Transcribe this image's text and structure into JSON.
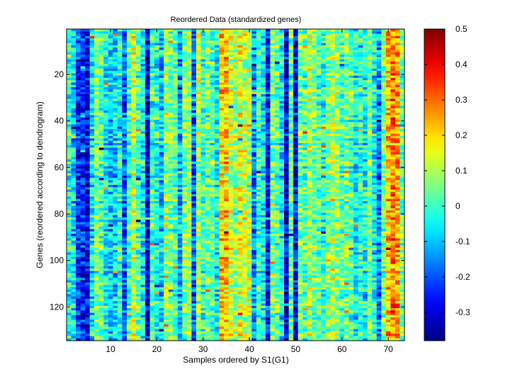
{
  "chart_data": {
    "type": "heatmap",
    "title": "Reordered Data (standardized genes)",
    "xlabel": "Samples ordered by S1(G1)",
    "ylabel": "Genes (reordered according to dendrogram)",
    "n_cols": 73,
    "n_rows": 134,
    "xlim": [
      0.5,
      73.5
    ],
    "ylim": [
      0.5,
      134.5
    ],
    "y_direction": "down",
    "xticks": [
      10,
      20,
      30,
      40,
      50,
      60,
      70
    ],
    "yticks": [
      20,
      40,
      60,
      80,
      100,
      120
    ],
    "colorbar": {
      "colormap": "jet",
      "range": [
        -0.38,
        0.5
      ],
      "ticks": [
        0.5,
        0.4,
        0.3,
        0.2,
        0.1,
        0,
        -0.1,
        -0.2,
        -0.3
      ],
      "tick_labels": [
        "0.5",
        "0.4",
        "0.3",
        "0.2",
        "0.1",
        "0",
        "-0.1",
        "-0.2",
        "-0.3"
      ]
    },
    "column_means": [
      -0.02,
      -0.08,
      -0.22,
      -0.25,
      -0.28,
      -0.05,
      0.05,
      0.02,
      -0.05,
      -0.1,
      -0.08,
      -0.02,
      -0.2,
      0.0,
      0.12,
      0.02,
      -0.05,
      -0.3,
      0.0,
      -0.02,
      -0.1,
      0.08,
      0.05,
      0.02,
      -0.12,
      0.05,
      0.08,
      -0.18,
      0.1,
      0.0,
      0.05,
      0.02,
      -0.05,
      0.2,
      0.22,
      0.12,
      0.1,
      0.14,
      0.12,
      0.1,
      -0.15,
      0.0,
      -0.05,
      -0.25,
      0.05,
      0.02,
      -0.05,
      -0.3,
      0.02,
      -0.28,
      0.05,
      0.02,
      0.1,
      0.05,
      0.02,
      -0.02,
      0.05,
      0.1,
      0.08,
      0.02,
      0.05,
      0.02,
      -0.05,
      0.0,
      -0.05,
      0.05,
      -0.05,
      -0.15,
      0.05,
      0.22,
      0.28,
      0.25,
      0.05
    ]
  }
}
